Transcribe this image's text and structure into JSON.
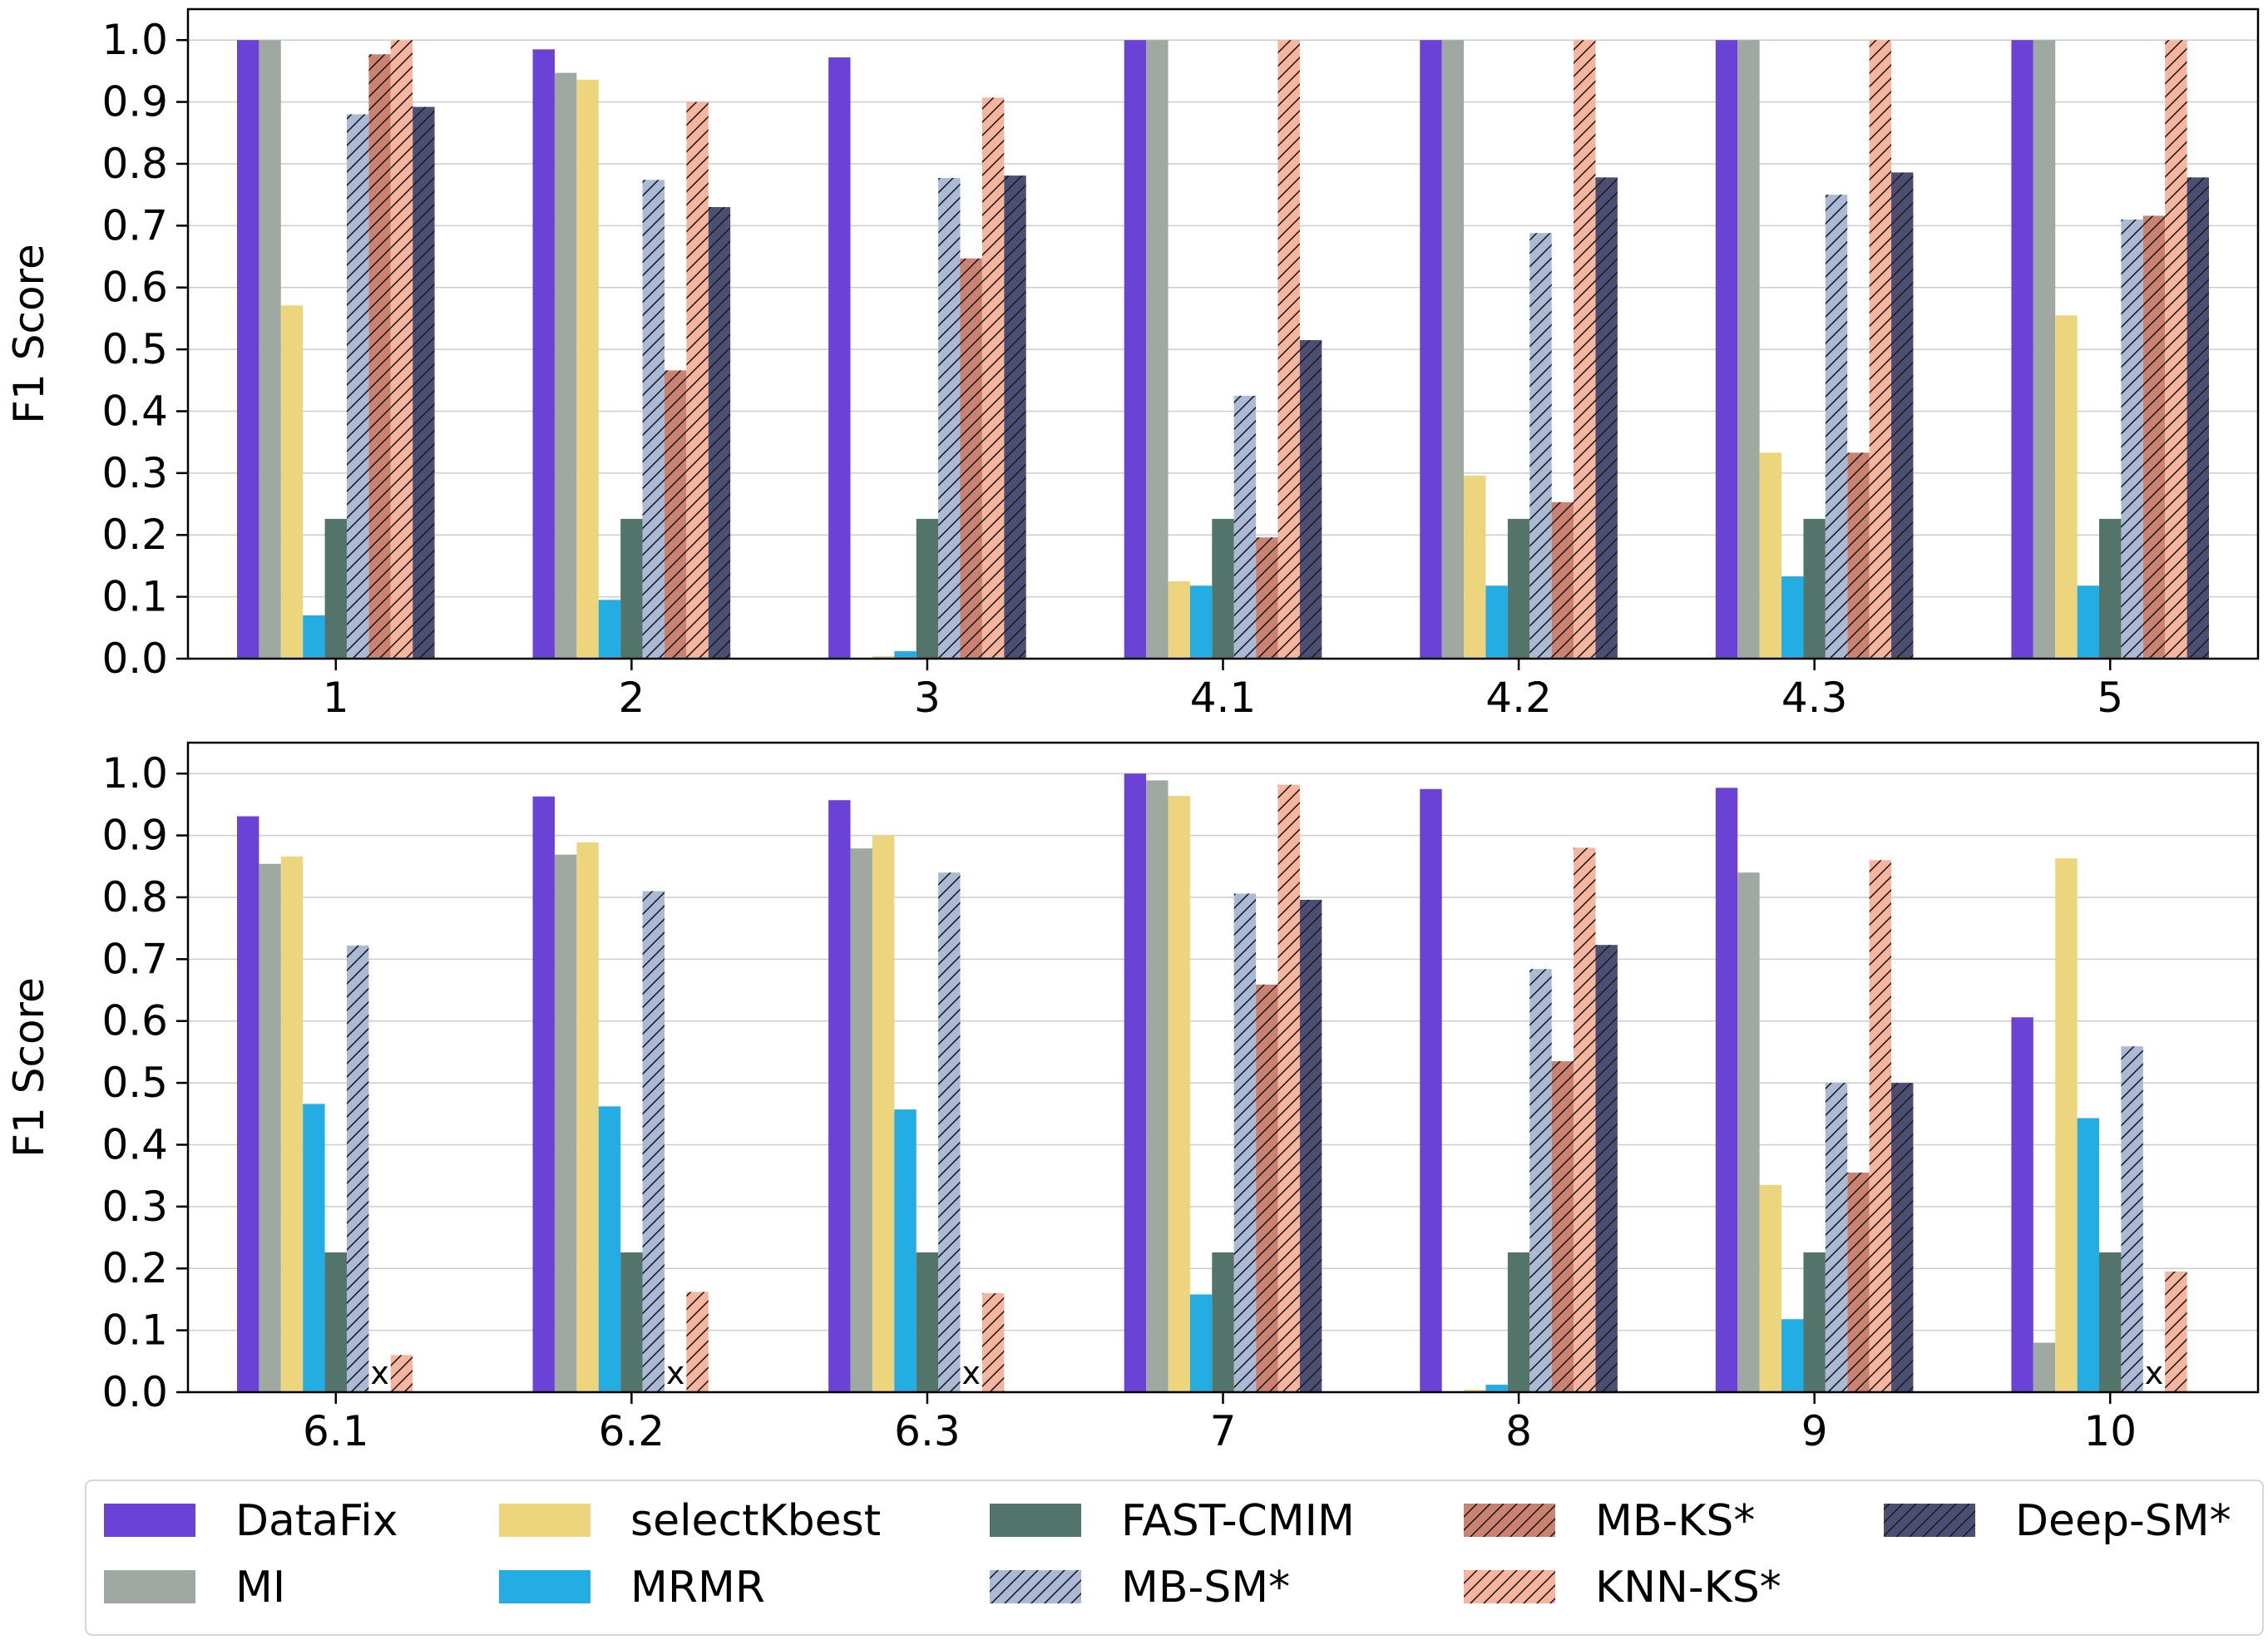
{
  "chart_data": [
    {
      "type": "bar",
      "ylabel": "F1 Score",
      "ylim": [
        0,
        1.05
      ],
      "yticks": [
        "0.0",
        "0.1",
        "0.2",
        "0.3",
        "0.4",
        "0.5",
        "0.6",
        "0.7",
        "0.8",
        "0.9",
        "1.0"
      ],
      "grid": "horizontal",
      "categories": [
        "1",
        "2",
        "3",
        "4.1",
        "4.2",
        "4.3",
        "5"
      ],
      "series": [
        {
          "name": "DataFix",
          "values": [
            1.0,
            0.985,
            0.972,
            1.0,
            1.0,
            1.0,
            1.0
          ]
        },
        {
          "name": "MI",
          "values": [
            1.0,
            0.947,
            null,
            1.0,
            1.0,
            1.0,
            1.0
          ]
        },
        {
          "name": "selectKbest",
          "values": [
            0.571,
            0.936,
            0.004,
            0.125,
            0.296,
            0.333,
            0.555
          ]
        },
        {
          "name": "MRMR",
          "values": [
            0.07,
            0.095,
            0.012,
            0.118,
            0.118,
            0.133,
            0.118
          ]
        },
        {
          "name": "FAST-CMIM",
          "values": [
            0.226,
            0.226,
            0.226,
            0.226,
            0.226,
            0.226,
            0.226
          ]
        },
        {
          "name": "MB-SM*",
          "values": [
            0.88,
            0.774,
            0.777,
            0.425,
            0.688,
            0.75,
            0.71
          ]
        },
        {
          "name": "MB-KS*",
          "values": [
            0.977,
            0.466,
            0.647,
            0.196,
            0.253,
            0.333,
            0.716
          ]
        },
        {
          "name": "KNN-KS*",
          "values": [
            1.0,
            0.9,
            0.907,
            1.0,
            1.0,
            1.0,
            1.0
          ]
        },
        {
          "name": "Deep-SM*",
          "values": [
            0.892,
            0.73,
            0.781,
            0.515,
            0.778,
            0.786,
            0.778
          ]
        }
      ]
    },
    {
      "type": "bar",
      "ylabel": "F1 Score",
      "ylim": [
        0,
        1.05
      ],
      "yticks": [
        "0.0",
        "0.1",
        "0.2",
        "0.3",
        "0.4",
        "0.5",
        "0.6",
        "0.7",
        "0.8",
        "0.9",
        "1.0"
      ],
      "grid": "horizontal",
      "categories": [
        "6.1",
        "6.2",
        "6.3",
        "7",
        "8",
        "9",
        "10"
      ],
      "series": [
        {
          "name": "DataFix",
          "values": [
            0.931,
            0.963,
            0.957,
            1.0,
            0.975,
            0.977,
            0.606
          ]
        },
        {
          "name": "MI",
          "values": [
            0.854,
            0.869,
            0.879,
            0.989,
            null,
            0.84,
            0.08
          ]
        },
        {
          "name": "selectKbest",
          "values": [
            0.866,
            0.889,
            0.9,
            0.964,
            0.004,
            0.335,
            0.863
          ]
        },
        {
          "name": "MRMR",
          "values": [
            0.466,
            0.462,
            0.457,
            0.158,
            0.012,
            0.118,
            0.443
          ]
        },
        {
          "name": "FAST-CMIM",
          "values": [
            0.226,
            0.226,
            0.226,
            0.226,
            0.226,
            0.226,
            0.226
          ]
        },
        {
          "name": "MB-SM*",
          "values": [
            0.722,
            0.81,
            0.84,
            0.806,
            0.684,
            0.5,
            0.559
          ]
        },
        {
          "name": "MB-KS*",
          "values": [
            null,
            null,
            null,
            0.659,
            0.535,
            0.355,
            null
          ]
        },
        {
          "name": "KNN-KS*",
          "values": [
            0.06,
            0.162,
            0.16,
            0.982,
            0.88,
            0.86,
            0.195
          ]
        },
        {
          "name": "Deep-SM*",
          "values": [
            null,
            null,
            null,
            0.796,
            0.723,
            0.5,
            null
          ]
        }
      ],
      "annotations": [
        {
          "category": "6.1",
          "text": "x"
        },
        {
          "category": "6.2",
          "text": "x"
        },
        {
          "category": "6.3",
          "text": "x"
        },
        {
          "category": "10",
          "text": "x"
        }
      ]
    }
  ],
  "legend": {
    "placement": "bottom",
    "entries": [
      {
        "name": "DataFix",
        "color": "#6a42d6",
        "hatch": false
      },
      {
        "name": "MI",
        "color": "#9fa9a2",
        "hatch": false
      },
      {
        "name": "selectKbest",
        "color": "#edd57e",
        "hatch": false
      },
      {
        "name": "MRMR",
        "color": "#23ade3",
        "hatch": false
      },
      {
        "name": "FAST-CMIM",
        "color": "#52746a",
        "hatch": false
      },
      {
        "name": "MB-SM*",
        "color": "#a9b9d6",
        "hatch": true
      },
      {
        "name": "MB-KS*",
        "color": "#cc8271",
        "hatch": true
      },
      {
        "name": "KNN-KS*",
        "color": "#f7b59e",
        "hatch": true
      },
      {
        "name": "Deep-SM*",
        "color": "#4c4f73",
        "hatch": true
      }
    ]
  }
}
